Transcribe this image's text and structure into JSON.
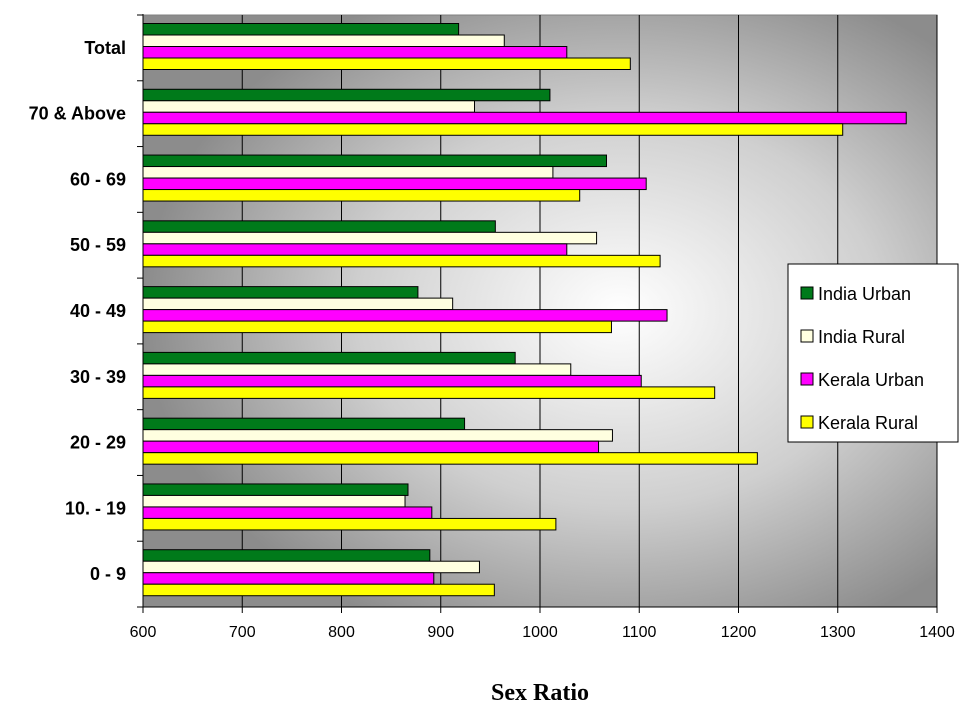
{
  "chart_data": {
    "type": "bar",
    "orientation": "horizontal",
    "title": "",
    "xlabel": "Sex Ratio",
    "ylabel": "",
    "xlim": [
      600,
      1400
    ],
    "xticks": [
      600,
      700,
      800,
      900,
      1000,
      1100,
      1200,
      1300,
      1400
    ],
    "grid": "vertical",
    "legend_position": "right",
    "categories": [
      "0 - 9",
      "10. - 19",
      "20 - 29",
      "30 - 39",
      "40 - 49",
      "50 - 59",
      "60 - 69",
      "70 & Above",
      "Total"
    ],
    "series": [
      {
        "name": "India Urban",
        "color": "#007a1a",
        "values": [
          889,
          867,
          924,
          975,
          877,
          955,
          1067,
          1010,
          918
        ]
      },
      {
        "name": "India Rural",
        "color": "#ffffe0",
        "values": [
          939,
          864,
          1073,
          1031,
          912,
          1057,
          1013,
          934,
          964
        ]
      },
      {
        "name": "Kerala Urban",
        "color": "#ff00ff",
        "values": [
          893,
          891,
          1059,
          1102,
          1128,
          1027,
          1107,
          1369,
          1027
        ]
      },
      {
        "name": "Kerala Rural",
        "color": "#ffff00",
        "values": [
          954,
          1016,
          1219,
          1176,
          1072,
          1121,
          1040,
          1305,
          1091
        ]
      }
    ]
  }
}
